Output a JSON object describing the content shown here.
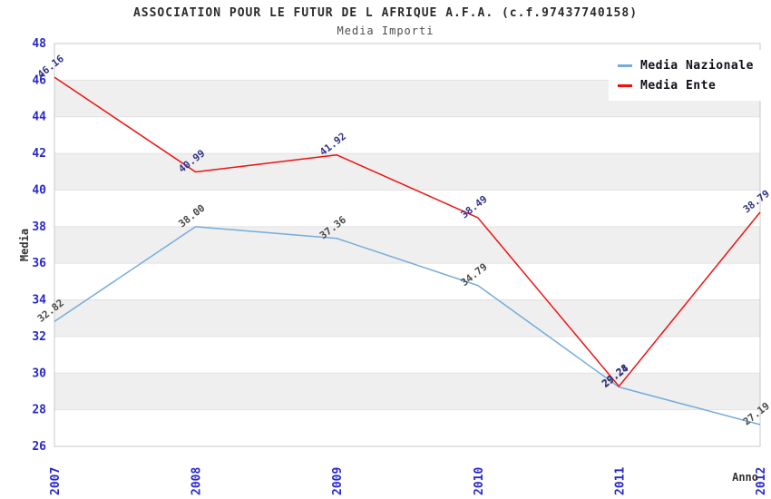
{
  "title": "ASSOCIATION POUR LE FUTUR DE L AFRIQUE A.F.A. (c.f.97437740158)",
  "subtitle": "Media Importi",
  "chart_data": {
    "type": "line",
    "x": [
      2007,
      2008,
      2009,
      2010,
      2011,
      2012
    ],
    "xlabel": "Anno",
    "ylabel": "Media",
    "ylim": [
      26,
      48
    ],
    "ytick_step": 2,
    "grid": "alternating-horizontal-bands",
    "legend_position": "top-right",
    "series": [
      {
        "name": "Media Nazionale",
        "color": "#76abdc",
        "label_color": "#4a4a4a",
        "values": [
          32.82,
          38.0,
          37.36,
          34.79,
          29.24,
          27.19
        ],
        "point_labels": [
          "32.82",
          "38.00",
          "37.36",
          "34.79",
          "29.24",
          "27.19"
        ]
      },
      {
        "name": "Media Ente",
        "color": "#ee1111",
        "label_color": "#33338c",
        "values": [
          46.16,
          40.99,
          41.92,
          38.49,
          29.28,
          38.79
        ],
        "point_labels": [
          "46.16",
          "40.99",
          "41.92",
          "38.49",
          "29.28",
          "38.79"
        ]
      }
    ]
  },
  "style_colors": {
    "band_gray": "#efefef",
    "gridline": "#e2e2e2",
    "plot_border": "#c9c9c9",
    "tick_blue": "#2727cf",
    "axis_label": "#333333"
  }
}
